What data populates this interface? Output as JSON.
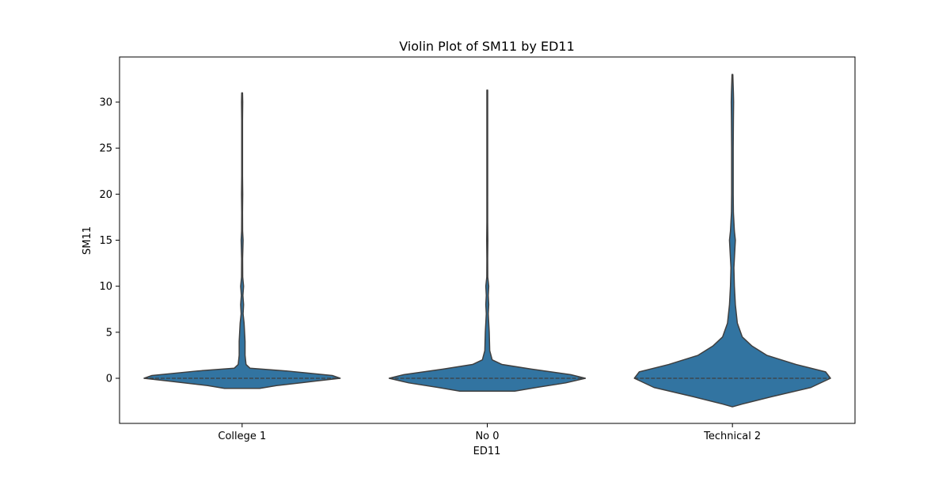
{
  "chart_data": {
    "type": "violin",
    "title": "Violin Plot of SM11 by ED11",
    "xlabel": "ED11",
    "ylabel": "SM11",
    "categories": [
      "College 1",
      "No 0",
      "Technical 2"
    ],
    "ylim": [
      -4.9,
      34.9
    ],
    "yticks": [
      0,
      5,
      10,
      15,
      20,
      25,
      30
    ],
    "color": "#3274a1",
    "edge_color": "#3f3f3f",
    "inner": "quartile",
    "grid": false,
    "legend": "none",
    "violins": [
      {
        "category": "College 1",
        "median": 0,
        "range": [
          -1.1,
          31.0
        ],
        "density": [
          [
            -1.1,
            0.18
          ],
          [
            -0.8,
            0.35
          ],
          [
            -0.3,
            0.75
          ],
          [
            0.0,
            1.0
          ],
          [
            0.3,
            0.92
          ],
          [
            0.8,
            0.45
          ],
          [
            1.1,
            0.08
          ],
          [
            1.5,
            0.04
          ],
          [
            2.5,
            0.03
          ],
          [
            4.0,
            0.03
          ],
          [
            5.0,
            0.025
          ],
          [
            6.0,
            0.02
          ],
          [
            7.0,
            0.01
          ],
          [
            8.0,
            0.015
          ],
          [
            9.0,
            0.008
          ],
          [
            10.0,
            0.015
          ],
          [
            11.0,
            0.006
          ],
          [
            13.0,
            0.005
          ],
          [
            15.0,
            0.01
          ],
          [
            16.0,
            0.005
          ],
          [
            18.0,
            0.004
          ],
          [
            20.0,
            0.006
          ],
          [
            22.0,
            0.004
          ],
          [
            25.0,
            0.004
          ],
          [
            28.0,
            0.004
          ],
          [
            30.0,
            0.006
          ],
          [
            31.0,
            0.004
          ]
        ]
      },
      {
        "category": "No 0",
        "median": 0,
        "range": [
          -1.4,
          31.3
        ],
        "density": [
          [
            -1.4,
            0.28
          ],
          [
            -1.0,
            0.5
          ],
          [
            -0.5,
            0.8
          ],
          [
            0.0,
            1.0
          ],
          [
            0.4,
            0.85
          ],
          [
            1.0,
            0.45
          ],
          [
            1.5,
            0.15
          ],
          [
            2.0,
            0.05
          ],
          [
            3.0,
            0.025
          ],
          [
            5.0,
            0.02
          ],
          [
            6.0,
            0.015
          ],
          [
            7.0,
            0.01
          ],
          [
            8.0,
            0.015
          ],
          [
            9.0,
            0.01
          ],
          [
            10.0,
            0.015
          ],
          [
            11.0,
            0.005
          ],
          [
            13.0,
            0.004
          ],
          [
            15.0,
            0.006
          ],
          [
            17.0,
            0.004
          ],
          [
            20.0,
            0.004
          ],
          [
            25.0,
            0.004
          ],
          [
            31.3,
            0.004
          ]
        ]
      },
      {
        "category": "Technical 2",
        "median": 0,
        "range": [
          -3.1,
          33.0
        ],
        "density": [
          [
            -3.1,
            0.0
          ],
          [
            -2.8,
            0.1
          ],
          [
            -2.0,
            0.4
          ],
          [
            -1.0,
            0.8
          ],
          [
            0.0,
            1.0
          ],
          [
            0.7,
            0.95
          ],
          [
            1.5,
            0.65
          ],
          [
            2.5,
            0.35
          ],
          [
            3.5,
            0.2
          ],
          [
            4.5,
            0.1
          ],
          [
            6.0,
            0.05
          ],
          [
            8.0,
            0.03
          ],
          [
            10.0,
            0.02
          ],
          [
            12.0,
            0.015
          ],
          [
            14.0,
            0.025
          ],
          [
            15.0,
            0.03
          ],
          [
            16.0,
            0.02
          ],
          [
            18.0,
            0.01
          ],
          [
            20.0,
            0.008
          ],
          [
            25.0,
            0.008
          ],
          [
            28.0,
            0.01
          ],
          [
            30.0,
            0.012
          ],
          [
            31.0,
            0.01
          ],
          [
            33.0,
            0.004
          ]
        ]
      }
    ]
  }
}
